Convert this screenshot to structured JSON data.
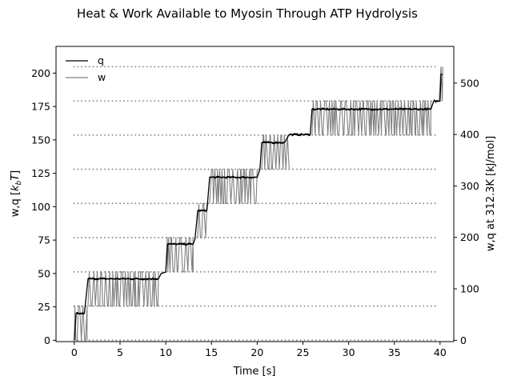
{
  "chart_data": {
    "type": "line",
    "title": "Heat & Work Available to Myosin Through ATP Hydrolysis",
    "xlabel": "Time [s]",
    "ylabel_left": "w,q [$k_bT$]",
    "ylabel_right": "w,q at 312.3K [kJ/mol]",
    "xlim": [
      -2,
      41.5
    ],
    "ylim": [
      -1,
      220
    ],
    "ylim_right_kjmol": [
      -2.6,
      571.3
    ],
    "x_ticks": [
      0,
      5,
      10,
      15,
      20,
      25,
      30,
      35,
      40
    ],
    "y_ticks_left": [
      0,
      25,
      50,
      75,
      100,
      125,
      150,
      175,
      200
    ],
    "y_ticks_right": [
      0,
      100,
      200,
      300,
      400,
      500
    ],
    "legend": {
      "position": "top-left",
      "entries": [
        "q",
        "w"
      ]
    },
    "reference_levels": [
      0,
      25.6,
      51.2,
      76.8,
      102.4,
      128,
      153.6,
      179.2,
      204.8
    ],
    "series": [
      {
        "name": "q",
        "color": "#000000",
        "x": [
          0,
          0.2,
          1.1,
          1.5,
          9.2,
          9.5,
          10.0,
          10.2,
          13.0,
          13.2,
          13.5,
          14.5,
          14.8,
          20.0,
          20.3,
          20.5,
          23.0,
          23.5,
          25.8,
          26.0,
          39.0,
          39.3,
          40.0,
          40.1,
          40.3
        ],
        "y": [
          0,
          20,
          20,
          46,
          46,
          50,
          51,
          72,
          72,
          76,
          97,
          97,
          122,
          122,
          128,
          148,
          148,
          154,
          154,
          173,
          173,
          179,
          179,
          199,
          199
        ]
      },
      {
        "name": "w",
        "color": "#808080",
        "note": "rapidly oscillating between adjacent reference levels within each segment",
        "segments": [
          {
            "t_start": 0.0,
            "t_end": 1.4,
            "low": 0,
            "high": 25.6
          },
          {
            "t_start": 1.5,
            "t_end": 9.2,
            "low": 25.6,
            "high": 51.2
          },
          {
            "t_start": 10.0,
            "t_end": 13.0,
            "low": 51.2,
            "high": 76.8
          },
          {
            "t_start": 13.5,
            "t_end": 14.5,
            "low": 76.8,
            "high": 102.4
          },
          {
            "t_start": 14.8,
            "t_end": 20.0,
            "low": 102.4,
            "high": 128
          },
          {
            "t_start": 20.5,
            "t_end": 23.5,
            "low": 128,
            "high": 153.6
          },
          {
            "t_start": 26.0,
            "t_end": 39.0,
            "low": 153.6,
            "high": 179.2
          },
          {
            "t_start": 39.9,
            "t_end": 40.3,
            "low": 179.2,
            "high": 204.8
          }
        ]
      }
    ]
  }
}
